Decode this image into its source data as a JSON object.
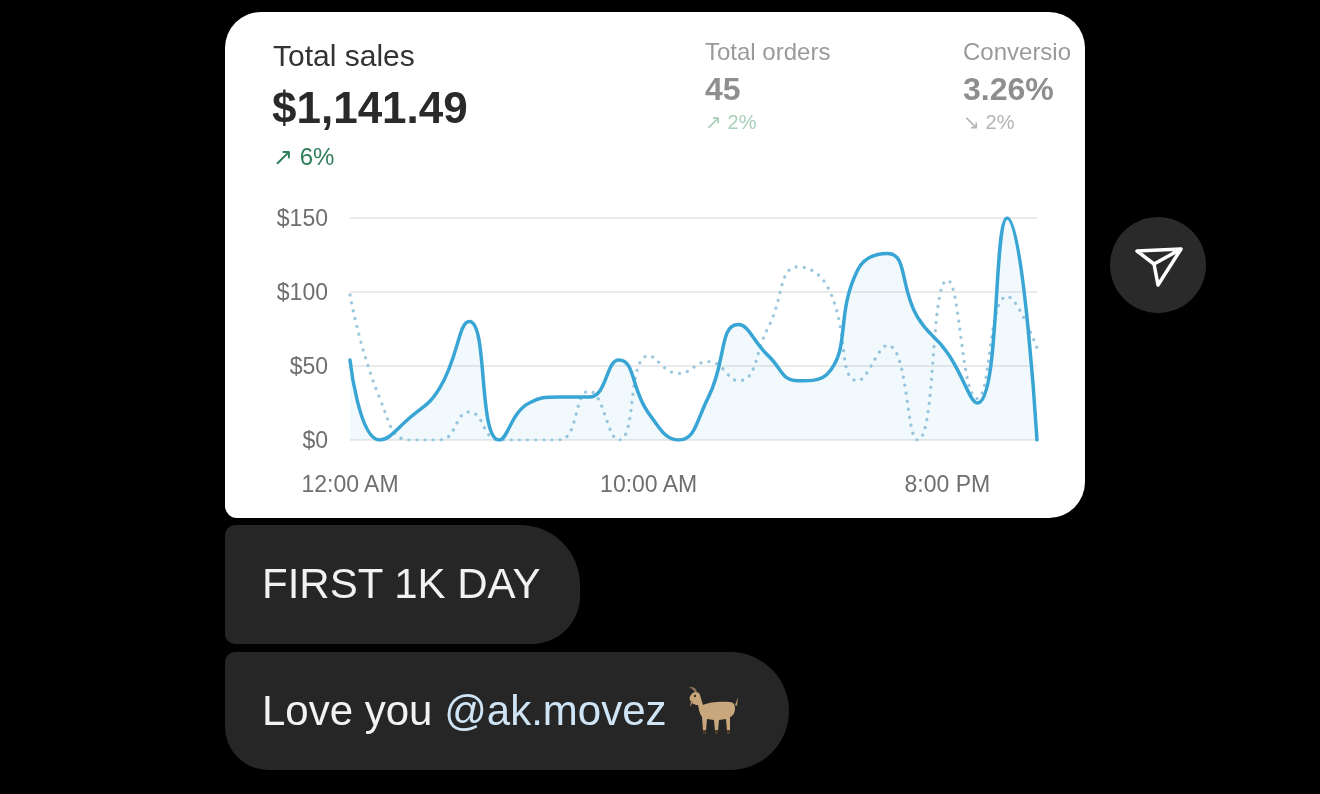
{
  "chart_data": {
    "type": "area",
    "title": "Total sales",
    "subtitle": "$1,141.49",
    "x": [
      0,
      1,
      2,
      3,
      4,
      5,
      6,
      7,
      8,
      9,
      10,
      11,
      12,
      13,
      14,
      15,
      16,
      17,
      18,
      19,
      20,
      21,
      22,
      23
    ],
    "series": [
      {
        "color": "#38a5d4",
        "values": [
          54,
          0,
          15,
          35,
          80,
          0,
          25,
          29,
          29,
          54,
          18,
          0,
          29,
          78,
          57,
          40,
          45,
          115,
          126,
          83,
          59,
          25,
          150,
          0
        ]
      },
      {
        "type": "line",
        "line_style": "dotted",
        "color": "#9cc7df",
        "values": [
          98,
          28,
          0,
          0,
          19,
          0,
          0,
          0,
          33,
          0,
          57,
          45,
          53,
          40,
          76,
          117,
          103,
          40,
          64,
          0,
          108,
          28,
          97,
          62
        ]
      }
    ],
    "xlim": [
      0,
      23
    ],
    "xticks": [
      {
        "value": 0,
        "label": "12:00 AM"
      },
      {
        "value": 10,
        "label": "10:00 AM"
      },
      {
        "value": 20,
        "label": "8:00 PM"
      }
    ],
    "ylim": [
      0,
      150
    ],
    "yticks": [
      {
        "value": 0,
        "label": "$0"
      },
      {
        "value": 50,
        "label": "$50"
      },
      {
        "value": 100,
        "label": "$100"
      },
      {
        "value": 150,
        "label": "$150"
      }
    ],
    "grid": "y",
    "annotations": [
      "↗ 6%",
      "Total orders",
      "45",
      "↗ 2%",
      "Conversio",
      "3.26%",
      "↘ 2%",
      "FIRST 1K DAY",
      "Love you @ak.movez"
    ]
  }
}
